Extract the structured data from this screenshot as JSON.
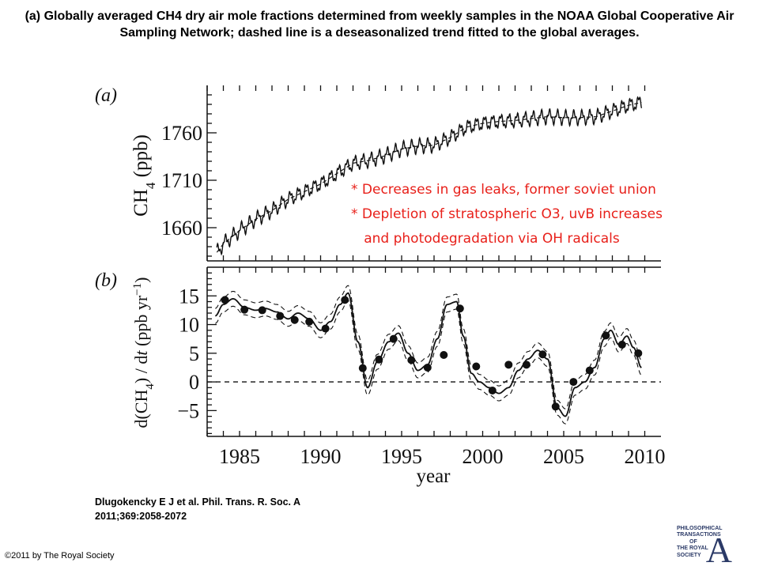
{
  "title": "(a) Globally averaged CH4 dry air mole fractions determined from weekly samples in the NOAA Global Cooperative Air Sampling Network; dashed line is a deseasonalized trend fitted to the global averages.",
  "citation": {
    "line1": "Dlugokencky E J et al. Phil. Trans. R. Soc. A",
    "line2": "2011;369:2058-2072"
  },
  "copyright": "©2011 by The Royal Society",
  "logo": {
    "line1": "PHILOSOPHICAL",
    "line2": "TRANSACTIONS",
    "line3": "OF",
    "line4": "THE ROYAL",
    "line5": "SOCIETY",
    "letter": "A"
  },
  "annotations": [
    "* Decreases in gas leaks, former soviet union",
    "* Depletion of stratospheric O3, uvB increases",
    "   and photodegradation via OH radicals"
  ],
  "colors": {
    "annotation": "#e8201a",
    "ink": "#111111"
  },
  "chart_data": [
    {
      "type": "line",
      "panel_label": "(a)",
      "ylabel": "CH4 (ppb)",
      "xlim": [
        1983,
        2011
      ],
      "ylim": [
        1625,
        1810
      ],
      "yticks": [
        1660,
        1710,
        1760
      ],
      "series": [
        {
          "style": "solid-seasonal",
          "x": [
            1983.6,
            1984,
            1985,
            1986,
            1987,
            1988,
            1989,
            1990,
            1991,
            1992,
            1993,
            1994,
            1995,
            1996,
            1997,
            1998,
            1999,
            2000,
            2001,
            2002,
            2003,
            2004,
            2005,
            2006,
            2007,
            2008,
            2009,
            2009.8
          ],
          "y": [
            1634,
            1643,
            1657,
            1669,
            1678,
            1690,
            1698,
            1706,
            1717,
            1728,
            1731,
            1736,
            1743,
            1746,
            1747,
            1755,
            1766,
            1770,
            1772,
            1773,
            1775,
            1777,
            1776,
            1776,
            1777,
            1783,
            1789,
            1792
          ]
        },
        {
          "style": "dashed-trend",
          "x": [
            1983.6,
            1984,
            1985,
            1986,
            1987,
            1988,
            1989,
            1990,
            1991,
            1992,
            1993,
            1994,
            1995,
            1996,
            1997,
            1998,
            1999,
            2000,
            2001,
            2002,
            2003,
            2004,
            2005,
            2006,
            2007,
            2008,
            2009,
            2009.8
          ],
          "y": [
            1634,
            1643,
            1657,
            1669,
            1678,
            1690,
            1698,
            1706,
            1717,
            1728,
            1731,
            1736,
            1743,
            1746,
            1747,
            1755,
            1766,
            1770,
            1772,
            1773,
            1775,
            1777,
            1776,
            1776,
            1777,
            1783,
            1789,
            1792
          ]
        }
      ]
    },
    {
      "type": "line",
      "panel_label": "(b)",
      "ylabel": "d(CH4) / dt (ppb yr−1)",
      "xlabel": "year",
      "xlim": [
        1983,
        2011
      ],
      "ylim": [
        -9.5,
        20
      ],
      "yticks": [
        -5,
        0,
        5,
        10,
        15
      ],
      "xticks": [
        1985,
        1990,
        1995,
        2000,
        2005,
        2010
      ],
      "zero_line": "dashed",
      "series": [
        {
          "style": "solid-growth-rate",
          "x": [
            1983.5,
            1984,
            1984.6,
            1985.3,
            1986,
            1986.6,
            1987.3,
            1988,
            1988.6,
            1989.3,
            1990,
            1990.6,
            1991.2,
            1991.7,
            1992.3,
            1992.9,
            1993.5,
            1994.2,
            1994.8,
            1995.4,
            1996,
            1996.6,
            1997.2,
            1997.8,
            1998.4,
            1998.8,
            1999.3,
            1999.8,
            2000.4,
            2001,
            2001.6,
            2002.2,
            2002.8,
            2003.4,
            2004,
            2004.6,
            2005.1,
            2005.7,
            2006.3,
            2006.9,
            2007.5,
            2007.9,
            2008.4,
            2008.9,
            2009.3,
            2009.8
          ],
          "y": [
            11.5,
            13.5,
            14.5,
            13.0,
            12.5,
            12.8,
            12.2,
            11.0,
            12.0,
            11.0,
            9.0,
            10.5,
            13.5,
            15.5,
            7.0,
            -1.0,
            3.5,
            7.0,
            8.5,
            5.0,
            2.0,
            3.0,
            7.5,
            13.5,
            14.0,
            8.0,
            1.5,
            0.0,
            -1.0,
            -2.0,
            -1.0,
            2.0,
            4.0,
            5.5,
            4.0,
            -4.5,
            -6.0,
            -1.0,
            0.0,
            2.5,
            7.5,
            9.0,
            6.5,
            8.0,
            6.0,
            2.5
          ]
        },
        {
          "style": "markers",
          "x": [
            1984.1,
            1985.3,
            1986.4,
            1987.5,
            1988.4,
            1989.3,
            1990.3,
            1991.5,
            1992.6,
            1993.6,
            1994.5,
            1995.6,
            1996.6,
            1997.6,
            1998.6,
            1999.6,
            2000.6,
            2001.6,
            2002.7,
            2003.7,
            2004.5,
            2005.6,
            2006.6,
            2007.6,
            2008.6,
            2009.6
          ],
          "y": [
            14.3,
            12.6,
            12.5,
            11.5,
            10.8,
            10.5,
            9.3,
            14.3,
            2.4,
            3.9,
            7.5,
            3.8,
            2.5,
            4.7,
            12.8,
            2.7,
            -1.5,
            3.0,
            3.0,
            4.8,
            -4.3,
            0.0,
            2.0,
            8.1,
            6.5,
            5.0
          ]
        }
      ]
    }
  ]
}
